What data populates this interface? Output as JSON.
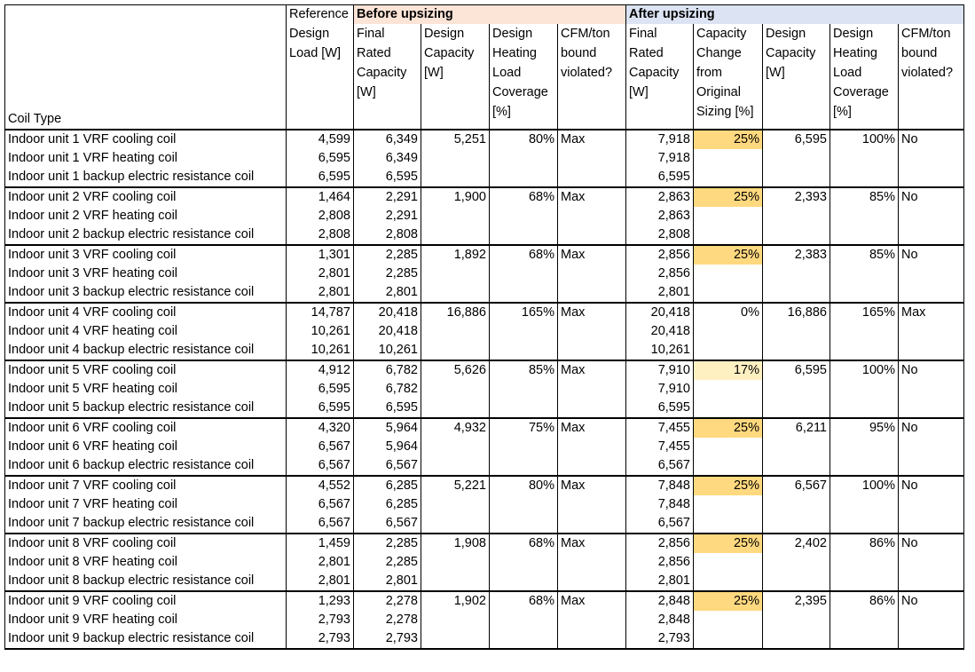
{
  "headers": {
    "coil_type": "Coil Type",
    "reference_top": "Reference",
    "reference_bottom": "Design Load [W]",
    "before_group": "Before upsizing",
    "after_group": "After upsizing",
    "before": {
      "final_rated_capacity": "Final Rated Capacity [W]",
      "design_capacity": "Design Capacity [W]",
      "design_heating_load_coverage": "Design Heating Load Coverage [%]",
      "cfm_ton_bound_violated": "CFM/ton bound violated?"
    },
    "after": {
      "final_rated_capacity": "Final Rated Capacity [W]",
      "capacity_change": "Capacity Change from Original Sizing [%]",
      "design_capacity": "Design Capacity [W]",
      "design_heating_load_coverage": "Design Heating Load Coverage [%]",
      "cfm_ton_bound_violated": "CFM/ton bound violated?"
    }
  },
  "units": [
    {
      "rows": [
        {
          "coil": "Indoor unit 1 VRF cooling coil",
          "ref": "4,599",
          "b_final": "6,349",
          "b_design": "5,251",
          "b_cov": "80%",
          "b_cfm": "Max",
          "a_final": "7,918",
          "a_change": "25%",
          "a_design": "6,595",
          "a_cov": "100%",
          "a_cfm": "No"
        },
        {
          "coil": "Indoor unit 1 VRF heating coil",
          "ref": "6,595",
          "b_final": "6,349",
          "a_final": "7,918"
        },
        {
          "coil": "Indoor unit 1 backup electric resistance coil",
          "ref": "6,595",
          "b_final": "6,595",
          "a_final": "6,595"
        }
      ]
    },
    {
      "rows": [
        {
          "coil": "Indoor unit 2 VRF cooling coil",
          "ref": "1,464",
          "b_final": "2,291",
          "b_design": "1,900",
          "b_cov": "68%",
          "b_cfm": "Max",
          "a_final": "2,863",
          "a_change": "25%",
          "a_design": "2,393",
          "a_cov": "85%",
          "a_cfm": "No"
        },
        {
          "coil": "Indoor unit 2 VRF heating coil",
          "ref": "2,808",
          "b_final": "2,291",
          "a_final": "2,863"
        },
        {
          "coil": "Indoor unit 2 backup electric resistance coil",
          "ref": "2,808",
          "b_final": "2,808",
          "a_final": "2,808"
        }
      ]
    },
    {
      "rows": [
        {
          "coil": "Indoor unit 3 VRF cooling coil",
          "ref": "1,301",
          "b_final": "2,285",
          "b_design": "1,892",
          "b_cov": "68%",
          "b_cfm": "Max",
          "a_final": "2,856",
          "a_change": "25%",
          "a_design": "2,383",
          "a_cov": "85%",
          "a_cfm": "No"
        },
        {
          "coil": "Indoor unit 3 VRF heating coil",
          "ref": "2,801",
          "b_final": "2,285",
          "a_final": "2,856"
        },
        {
          "coil": "Indoor unit 3 backup electric resistance coil",
          "ref": "2,801",
          "b_final": "2,801",
          "a_final": "2,801"
        }
      ]
    },
    {
      "rows": [
        {
          "coil": "Indoor unit 4 VRF cooling coil",
          "ref": "14,787",
          "b_final": "20,418",
          "b_design": "16,886",
          "b_cov": "165%",
          "b_cfm": "Max",
          "a_final": "20,418",
          "a_change": "0%",
          "a_design": "16,886",
          "a_cov": "165%",
          "a_cfm": "Max"
        },
        {
          "coil": "Indoor unit 4 VRF heating coil",
          "ref": "10,261",
          "b_final": "20,418",
          "a_final": "20,418"
        },
        {
          "coil": "Indoor unit 4 backup electric resistance coil",
          "ref": "10,261",
          "b_final": "10,261",
          "a_final": "10,261"
        }
      ]
    },
    {
      "rows": [
        {
          "coil": "Indoor unit 5 VRF cooling coil",
          "ref": "4,912",
          "b_final": "6,782",
          "b_design": "5,626",
          "b_cov": "85%",
          "b_cfm": "Max",
          "a_final": "7,910",
          "a_change": "17%",
          "a_design": "6,595",
          "a_cov": "100%",
          "a_cfm": "No"
        },
        {
          "coil": "Indoor unit 5 VRF heating coil",
          "ref": "6,595",
          "b_final": "6,782",
          "a_final": "7,910"
        },
        {
          "coil": "Indoor unit 5 backup electric resistance coil",
          "ref": "6,595",
          "b_final": "6,595",
          "a_final": "6,595"
        }
      ]
    },
    {
      "rows": [
        {
          "coil": "Indoor unit 6 VRF cooling coil",
          "ref": "4,320",
          "b_final": "5,964",
          "b_design": "4,932",
          "b_cov": "75%",
          "b_cfm": "Max",
          "a_final": "7,455",
          "a_change": "25%",
          "a_design": "6,211",
          "a_cov": "95%",
          "a_cfm": "No"
        },
        {
          "coil": "Indoor unit 6 VRF heating coil",
          "ref": "6,567",
          "b_final": "5,964",
          "a_final": "7,455"
        },
        {
          "coil": "Indoor unit 6 backup electric resistance coil",
          "ref": "6,567",
          "b_final": "6,567",
          "a_final": "6,567"
        }
      ]
    },
    {
      "rows": [
        {
          "coil": "Indoor unit 7 VRF cooling coil",
          "ref": "4,552",
          "b_final": "6,285",
          "b_design": "5,221",
          "b_cov": "80%",
          "b_cfm": "Max",
          "a_final": "7,848",
          "a_change": "25%",
          "a_design": "6,567",
          "a_cov": "100%",
          "a_cfm": "No"
        },
        {
          "coil": "Indoor unit 7 VRF heating coil",
          "ref": "6,567",
          "b_final": "6,285",
          "a_final": "7,848"
        },
        {
          "coil": "Indoor unit 7 backup electric resistance coil",
          "ref": "6,567",
          "b_final": "6,567",
          "a_final": "6,567"
        }
      ]
    },
    {
      "rows": [
        {
          "coil": "Indoor unit 8 VRF cooling coil",
          "ref": "1,459",
          "b_final": "2,285",
          "b_design": "1,908",
          "b_cov": "68%",
          "b_cfm": "Max",
          "a_final": "2,856",
          "a_change": "25%",
          "a_design": "2,402",
          "a_cov": "86%",
          "a_cfm": "No"
        },
        {
          "coil": "Indoor unit 8 VRF heating coil",
          "ref": "2,801",
          "b_final": "2,285",
          "a_final": "2,856"
        },
        {
          "coil": "Indoor unit 8 backup electric resistance coil",
          "ref": "2,801",
          "b_final": "2,801",
          "a_final": "2,801"
        }
      ]
    },
    {
      "rows": [
        {
          "coil": "Indoor unit 9 VRF cooling coil",
          "ref": "1,293",
          "b_final": "2,278",
          "b_design": "1,902",
          "b_cov": "68%",
          "b_cfm": "Max",
          "a_final": "2,848",
          "a_change": "25%",
          "a_design": "2,395",
          "a_cov": "86%",
          "a_cfm": "No"
        },
        {
          "coil": "Indoor unit 9 VRF heating coil",
          "ref": "2,793",
          "b_final": "2,278",
          "a_final": "2,848"
        },
        {
          "coil": "Indoor unit 9 backup electric resistance coil",
          "ref": "2,793",
          "b_final": "2,793",
          "a_final": "2,793"
        }
      ]
    }
  ],
  "colors": {
    "before_header_bg": "#fce4d6",
    "after_header_bg": "#dce3f2",
    "capacity_change_highlight": "#ffd97f",
    "capacity_change_highlight_light": "#fff0c2"
  }
}
